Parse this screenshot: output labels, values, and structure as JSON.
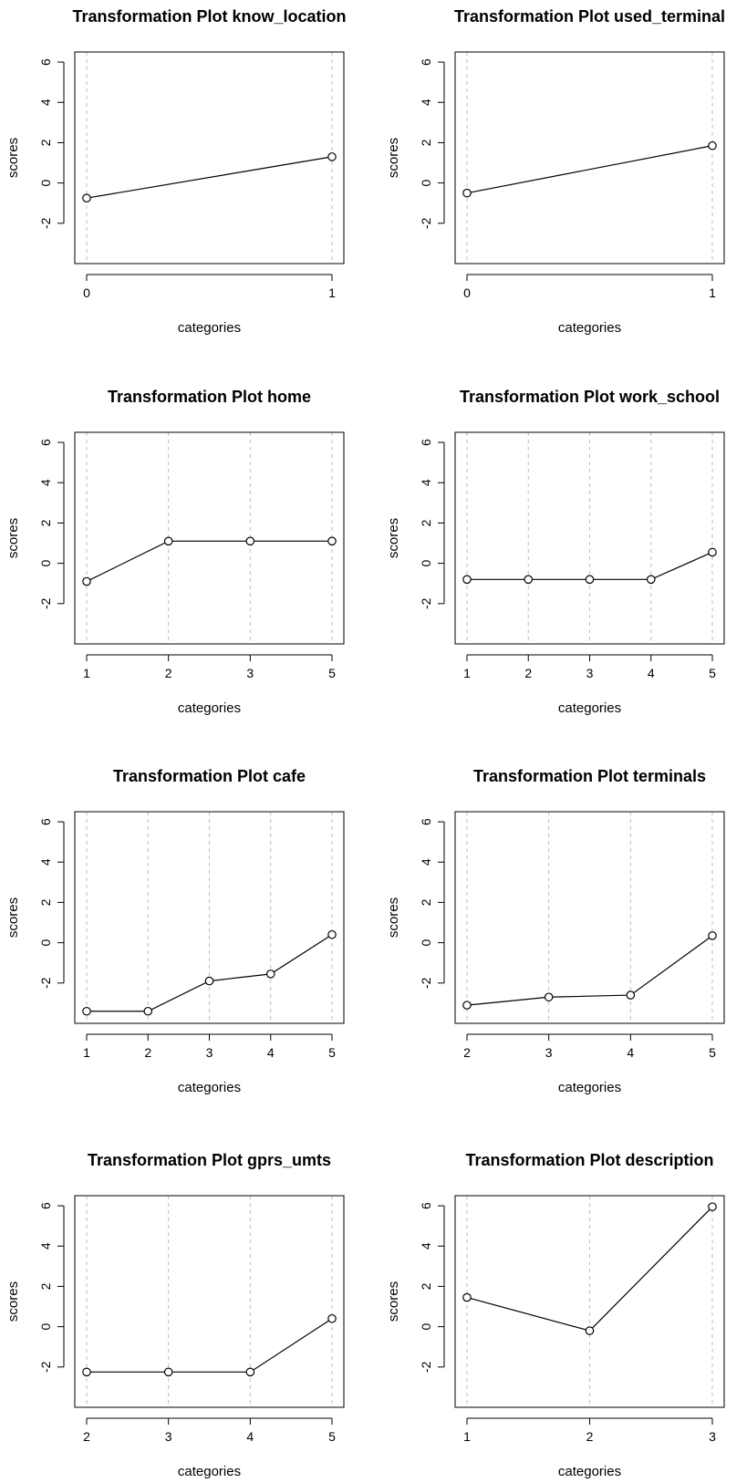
{
  "colors": {
    "line": "#000000",
    "grid": "#bebebe",
    "background": "#ffffff"
  },
  "chart_data": [
    {
      "type": "line",
      "title": "Transformation Plot know_location",
      "xlabel": "categories",
      "ylabel": "scores",
      "categories": [
        "0",
        "1"
      ],
      "values": [
        -0.75,
        1.3
      ],
      "ylim": [
        -4,
        6.5
      ],
      "yticks": [
        "6",
        "4",
        "2",
        "0",
        "-2"
      ],
      "grid": "vertical-dashed"
    },
    {
      "type": "line",
      "title": "Transformation Plot used_terminal",
      "xlabel": "categories",
      "ylabel": "scores",
      "categories": [
        "0",
        "1"
      ],
      "values": [
        -0.5,
        1.85
      ],
      "ylim": [
        -4,
        6.5
      ],
      "yticks": [
        "6",
        "4",
        "2",
        "0",
        "-2"
      ],
      "grid": "vertical-dashed"
    },
    {
      "type": "line",
      "title": "Transformation Plot home",
      "xlabel": "categories",
      "ylabel": "scores",
      "categories": [
        "1",
        "2",
        "3",
        "5"
      ],
      "values": [
        -0.9,
        1.1,
        1.1,
        1.1
      ],
      "ylim": [
        -4,
        6.5
      ],
      "yticks": [
        "6",
        "4",
        "2",
        "0",
        "-2"
      ],
      "grid": "vertical-dashed"
    },
    {
      "type": "line",
      "title": "Transformation Plot work_school",
      "xlabel": "categories",
      "ylabel": "scores",
      "categories": [
        "1",
        "2",
        "3",
        "4",
        "5"
      ],
      "values": [
        -0.8,
        -0.8,
        -0.8,
        -0.8,
        0.55
      ],
      "ylim": [
        -4,
        6.5
      ],
      "yticks": [
        "6",
        "4",
        "2",
        "0",
        "-2"
      ],
      "grid": "vertical-dashed"
    },
    {
      "type": "line",
      "title": "Transformation Plot cafe",
      "xlabel": "categories",
      "ylabel": "scores",
      "categories": [
        "1",
        "2",
        "3",
        "4",
        "5"
      ],
      "values": [
        -3.4,
        -3.4,
        -1.9,
        -1.55,
        0.4
      ],
      "ylim": [
        -4,
        6.5
      ],
      "yticks": [
        "6",
        "4",
        "2",
        "0",
        "-2"
      ],
      "grid": "vertical-dashed"
    },
    {
      "type": "line",
      "title": "Transformation Plot terminals",
      "xlabel": "categories",
      "ylabel": "scores",
      "categories": [
        "2",
        "3",
        "4",
        "5"
      ],
      "values": [
        -3.1,
        -2.7,
        -2.6,
        0.35
      ],
      "ylim": [
        -4,
        6.5
      ],
      "yticks": [
        "6",
        "4",
        "2",
        "0",
        "-2"
      ],
      "grid": "vertical-dashed"
    },
    {
      "type": "line",
      "title": "Transformation Plot gprs_umts",
      "xlabel": "categories",
      "ylabel": "scores",
      "categories": [
        "2",
        "3",
        "4",
        "5"
      ],
      "values": [
        -2.25,
        -2.25,
        -2.25,
        0.4
      ],
      "ylim": [
        -4,
        6.5
      ],
      "yticks": [
        "6",
        "4",
        "2",
        "0",
        "-2"
      ],
      "grid": "vertical-dashed"
    },
    {
      "type": "line",
      "title": "Transformation Plot description",
      "xlabel": "categories",
      "ylabel": "scores",
      "categories": [
        "1",
        "2",
        "3"
      ],
      "values": [
        1.45,
        -0.2,
        5.95
      ],
      "ylim": [
        -4,
        6.5
      ],
      "yticks": [
        "6",
        "4",
        "2",
        "0",
        "-2"
      ],
      "grid": "vertical-dashed"
    }
  ]
}
